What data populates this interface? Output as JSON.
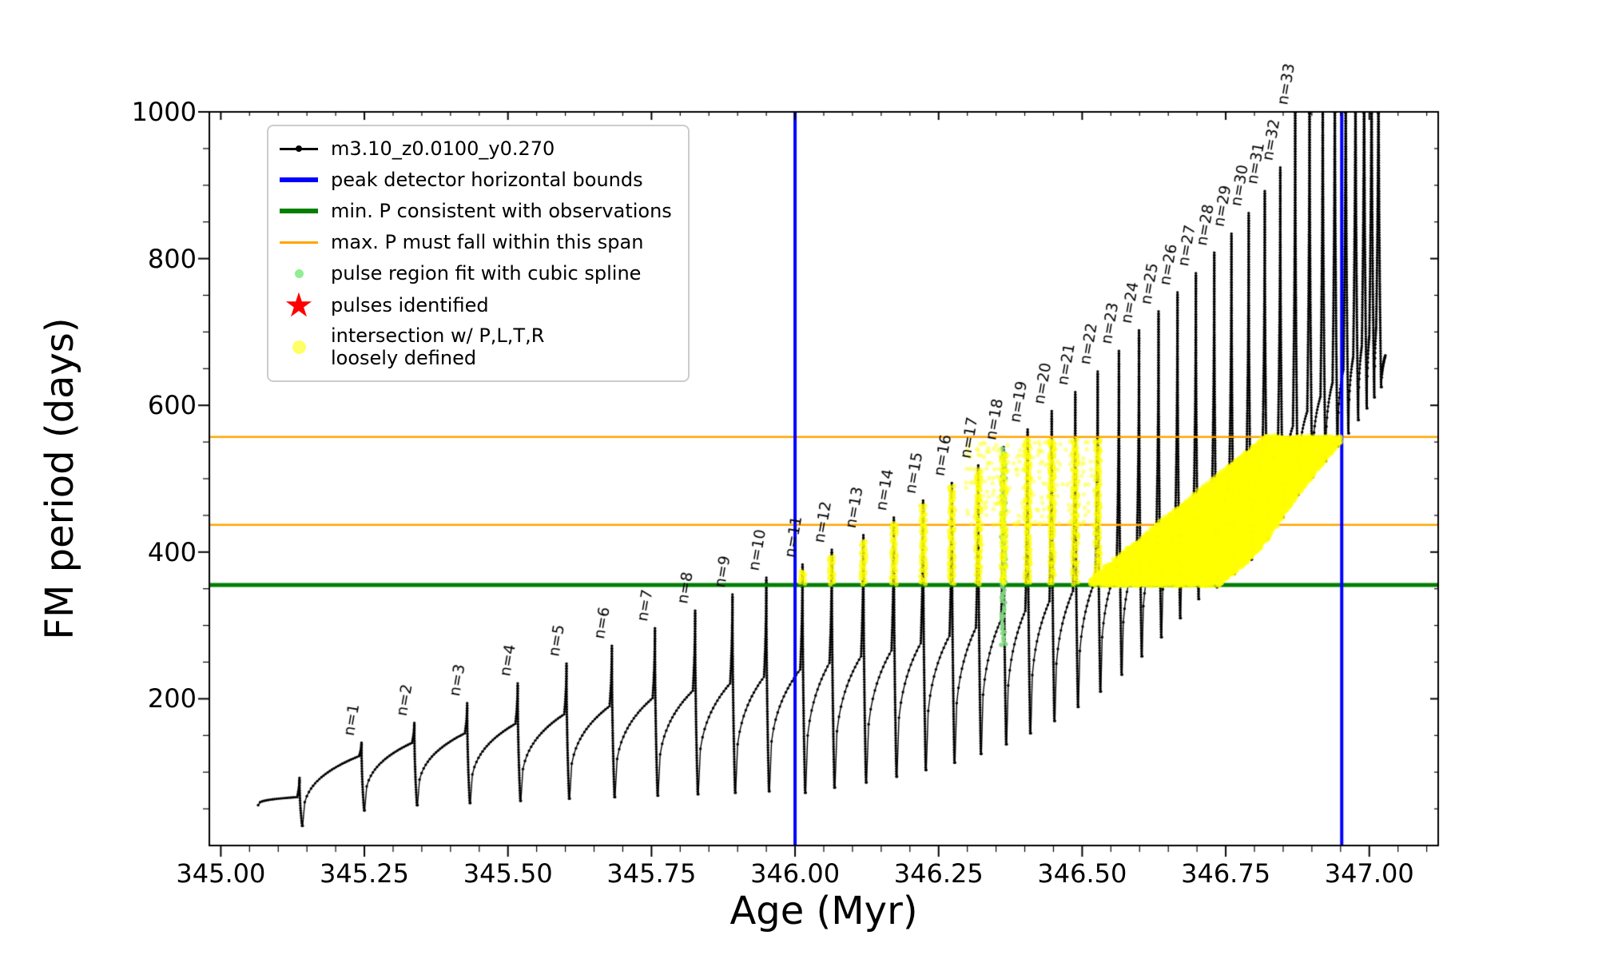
{
  "figure": {
    "background": "#ffffff"
  },
  "legend": {
    "items": [
      {
        "label": "m3.10_z0.0100_y0.270",
        "marker": "line-dot",
        "color": "#000000",
        "lw": 3
      },
      {
        "label": "peak detector horizontal bounds",
        "marker": "thick-line",
        "color": "#0000ff",
        "lw": 6
      },
      {
        "label": "min. P consistent with observations",
        "marker": "thick-line",
        "color": "#007f00",
        "lw": 6
      },
      {
        "label": "max. P must fall within this span",
        "marker": "line",
        "color": "#ffa500",
        "lw": 3
      },
      {
        "label": "pulse region fit with cubic spline",
        "marker": "dot",
        "color": "#90ee90",
        "size": 11
      },
      {
        "label": "pulses identified",
        "marker": "star",
        "color": "#ff0000",
        "size": 42
      },
      {
        "label": "intersection w/ P,L,T,R",
        "label2": "loosely defined",
        "marker": "dot",
        "color": "#ffff66",
        "size": 17
      }
    ]
  },
  "chart_data": {
    "type": "line",
    "title": "",
    "xlabel": "Age (Myr)",
    "ylabel": "FM period (days)",
    "xlim": [
      344.98,
      347.12
    ],
    "ylim": [
      0,
      1000
    ],
    "xticks": [
      345.0,
      345.25,
      345.5,
      345.75,
      346.0,
      346.25,
      346.5,
      346.75,
      347.0
    ],
    "xtick_labels": [
      "345.00",
      "345.25",
      "345.50",
      "345.75",
      "346.00",
      "346.25",
      "346.50",
      "346.75",
      "347.00"
    ],
    "xtick_minor_step": 0.05,
    "yticks": [
      200,
      400,
      600,
      800,
      1000
    ],
    "ytick_labels": [
      "200",
      "400",
      "600",
      "800",
      "1000"
    ],
    "ytick_minor_step": 50,
    "grid": false,
    "legend_position": "upper-left",
    "series_label": "m3.10_z0.0100_y0.270",
    "line_color": "#000000",
    "vlines": {
      "label": "peak detector horizontal bounds",
      "color": "#0000ff",
      "x": [
        346.0,
        346.952
      ]
    },
    "hlines": [
      {
        "label": "min. P consistent with observations",
        "color": "#007f00",
        "y": 355,
        "lw": 5
      },
      {
        "label": "max. P must fall within this span",
        "color": "#ffa500",
        "y": 437,
        "lw": 2.5
      },
      {
        "label": "max. P must fall within this span",
        "color": "#ffa500",
        "y": 557,
        "lw": 2.5
      }
    ],
    "curve": {
      "start_age": 345.065,
      "start_value": 55,
      "end_age": 347.028,
      "end_value": 668
    },
    "pulses": [
      {
        "n": null,
        "age": 345.137,
        "peak": 92,
        "base": 66,
        "min": 27
      },
      {
        "n": "n=1",
        "age": 345.245,
        "peak": 140,
        "base": 122,
        "min": 48
      },
      {
        "n": "n=2",
        "age": 345.337,
        "peak": 167,
        "base": 140,
        "min": 55
      },
      {
        "n": "n=3",
        "age": 345.429,
        "peak": 194,
        "base": 153,
        "min": 58
      },
      {
        "n": "n=4",
        "age": 345.517,
        "peak": 221,
        "base": 166,
        "min": 61
      },
      {
        "n": "n=5",
        "age": 345.602,
        "peak": 248,
        "base": 179,
        "min": 64
      },
      {
        "n": "n=6",
        "age": 345.681,
        "peak": 272,
        "base": 190,
        "min": 66
      },
      {
        "n": "n=7",
        "age": 345.756,
        "peak": 296,
        "base": 201,
        "min": 68
      },
      {
        "n": "n=8",
        "age": 345.826,
        "peak": 320,
        "base": 211,
        "min": 70
      },
      {
        "n": "n=9",
        "age": 345.891,
        "peak": 342,
        "base": 221,
        "min": 72
      },
      {
        "n": "n=10",
        "age": 345.95,
        "peak": 365,
        "base": 230,
        "min": 74
      },
      {
        "n": "n=11",
        "age": 346.013,
        "peak": 383,
        "base": 240,
        "min": 72
      },
      {
        "n": "n=12",
        "age": 346.064,
        "peak": 403,
        "base": 249,
        "min": 79
      },
      {
        "n": "n=13",
        "age": 346.119,
        "peak": 423,
        "base": 258,
        "min": 86
      },
      {
        "n": "n=14",
        "age": 346.172,
        "peak": 447,
        "base": 266,
        "min": 94
      },
      {
        "n": "n=15",
        "age": 346.223,
        "peak": 470,
        "base": 276,
        "min": 103
      },
      {
        "n": "n=16",
        "age": 346.273,
        "peak": 494,
        "base": 286,
        "min": 113
      },
      {
        "n": "n=17",
        "age": 346.319,
        "peak": 518,
        "base": 297,
        "min": 125
      },
      {
        "n": "n=18",
        "age": 346.363,
        "peak": 543,
        "base": 308,
        "min": 138
      },
      {
        "n": "n=19",
        "age": 346.405,
        "peak": 567,
        "base": 320,
        "min": 153
      },
      {
        "n": "n=20",
        "age": 346.447,
        "peak": 592,
        "base": 333,
        "min": 170
      },
      {
        "n": "n=21",
        "age": 346.488,
        "peak": 618,
        "base": 347,
        "min": 189
      },
      {
        "n": "n=22",
        "age": 346.527,
        "peak": 646,
        "base": 362,
        "min": 210
      },
      {
        "n": "n=23",
        "age": 346.564,
        "peak": 674,
        "base": 378,
        "min": 233
      },
      {
        "n": "n=24",
        "age": 346.599,
        "peak": 702,
        "base": 395,
        "min": 258
      },
      {
        "n": "n=25",
        "age": 346.633,
        "peak": 728,
        "base": 413,
        "min": 284
      },
      {
        "n": "n=26",
        "age": 346.666,
        "peak": 754,
        "base": 432,
        "min": 310
      },
      {
        "n": "n=27",
        "age": 346.698,
        "peak": 780,
        "base": 452,
        "min": 336
      },
      {
        "n": "n=28",
        "age": 346.73,
        "peak": 808,
        "base": 472,
        "min": 352
      },
      {
        "n": "n=29",
        "age": 346.76,
        "peak": 834,
        "base": 492,
        "min": 370
      },
      {
        "n": "n=30",
        "age": 346.79,
        "peak": 862,
        "base": 512,
        "min": 390
      },
      {
        "n": "n=31",
        "age": 346.818,
        "peak": 892,
        "base": 532,
        "min": 418
      },
      {
        "n": "n=32",
        "age": 346.845,
        "peak": 924,
        "base": 552,
        "min": 448
      },
      {
        "n": "n=33",
        "age": 346.871,
        "peak": 1030,
        "base": 572,
        "min": 478
      },
      {
        "n": null,
        "age": 346.896,
        "peak": 1060,
        "base": 592,
        "min": 502
      },
      {
        "n": null,
        "age": 346.919,
        "peak": 1080,
        "base": 612,
        "min": 524
      },
      {
        "n": null,
        "age": 346.94,
        "peak": 1100,
        "base": 631,
        "min": 544
      },
      {
        "n": null,
        "age": 346.959,
        "peak": 1110,
        "base": 649,
        "min": 562
      },
      {
        "n": null,
        "age": 346.976,
        "peak": 1120,
        "base": 666,
        "min": 580
      },
      {
        "n": null,
        "age": 346.991,
        "peak": 1120,
        "base": 681,
        "min": 596
      },
      {
        "n": null,
        "age": 347.004,
        "peak": 1120,
        "base": 695,
        "min": 611
      },
      {
        "n": null,
        "age": 347.016,
        "peak": 1120,
        "base": 707,
        "min": 625
      }
    ],
    "spline_fit_column": {
      "age": 346.363,
      "pmin": 272,
      "pmax": 543,
      "color": "#7fd87f"
    },
    "yellow_region": {
      "color": "#ffff00",
      "age_start": 346.515,
      "age_end": 346.967,
      "p_bottom": 357,
      "p_top_cap": 557,
      "top_ramp_start_age": 346.505,
      "top_reach_age": 346.82
    },
    "yellow_columns": {
      "age_min": 346.005,
      "age_max": 346.56,
      "p_min": 358,
      "p_cap": 557
    },
    "yellow_wisps": {
      "age_min": 346.3,
      "age_max": 346.52,
      "p_min": 440,
      "p_max": 556
    }
  }
}
